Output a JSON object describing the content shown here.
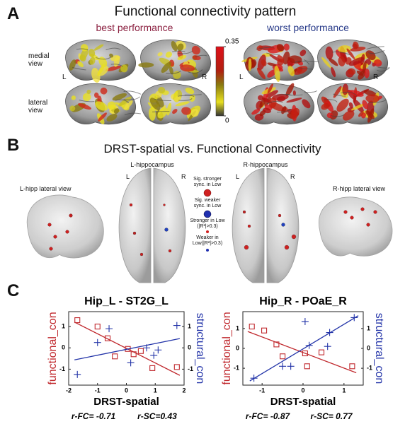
{
  "panel_a": {
    "label": "A",
    "title": "Functional connectivity pattern",
    "best": "best performance",
    "worst": "worst performance",
    "medial": "medial view",
    "lateral": "lateral view",
    "sides": [
      "L",
      "R",
      "L",
      "R"
    ],
    "colorbar": {
      "lim": [
        0,
        0.35
      ],
      "ticks": [
        0.35,
        0
      ]
    }
  },
  "panel_b": {
    "label": "B",
    "title": "DRST-spatial vs. Functional Connectivity",
    "left_lateral": "L-hipp lateral view",
    "left_top": "L-hippocampus",
    "right_top": "R-hippocampus",
    "right_lateral": "R-hipp lateral view",
    "sides": [
      "L",
      "R",
      "L",
      "R"
    ],
    "legend": [
      "Sig. stronger sync. in Low",
      "Sig. weaker sync. in Low",
      "Stronger in Low (|R²|>0.3)",
      "Weaker in Low(|R²|>0.3)"
    ]
  },
  "panel_c": {
    "label": "C"
  },
  "chart_data": [
    {
      "type": "scatter",
      "title": "Hip_L - ST2G_L",
      "xlabel": "DRST-spatial",
      "annotations": [
        "r-FC= -0.71",
        "r-SC=0.43"
      ],
      "xlim": [
        -2,
        2
      ],
      "xticks": [
        -2,
        -1,
        0,
        1,
        2
      ],
      "ylim": [
        -1.75,
        1.7
      ],
      "yticks": [
        -1,
        0,
        1
      ],
      "y2lim": [
        -1.75,
        1.7
      ],
      "y2ticks": [
        1,
        0,
        -1
      ],
      "series": [
        {
          "name": "functional_con",
          "color": "#c0282d",
          "marker": "square",
          "x": [
            -1.7,
            -1.0,
            -0.65,
            -0.4,
            0.05,
            0.25,
            0.5,
            0.9,
            1.75
          ],
          "values": [
            1.3,
            1.0,
            0.45,
            -0.4,
            -0.05,
            -0.3,
            -0.15,
            -0.95,
            -0.9
          ]
        },
        {
          "name": "structural_con",
          "color": "#2233a8",
          "marker": "plus",
          "axis": "y2",
          "x": [
            -1.7,
            -1.0,
            -0.6,
            0.15,
            0.7,
            0.95,
            1.1,
            1.75
          ],
          "values": [
            -1.25,
            0.25,
            0.9,
            -0.7,
            0.0,
            -0.35,
            -0.1,
            1.05
          ]
        }
      ]
    },
    {
      "type": "scatter",
      "title": "Hip_R - POaE_R",
      "xlabel": "DRST-spatial",
      "annotations": [
        "r-FC= -0.87",
        "r-SC= 0.77"
      ],
      "xlim": [
        -1.47,
        1.47
      ],
      "xticks": [
        -1,
        0,
        1
      ],
      "ylim": [
        -1.85,
        1.85
      ],
      "yticks": [
        -1,
        0,
        1
      ],
      "y2lim": [
        -1.85,
        1.85
      ],
      "y2ticks": [
        1,
        0,
        -1
      ],
      "series": [
        {
          "name": "functional_con",
          "color": "#c0282d",
          "marker": "square",
          "x": [
            -1.25,
            -0.95,
            -0.65,
            -0.5,
            0.05,
            0.1,
            0.45,
            1.2
          ],
          "values": [
            1.1,
            0.9,
            0.2,
            -0.4,
            -0.25,
            -0.9,
            -0.2,
            -0.9
          ]
        },
        {
          "name": "structural_con",
          "color": "#2233a8",
          "marker": "plus",
          "axis": "y2",
          "x": [
            -1.2,
            -0.5,
            -0.3,
            0.05,
            0.15,
            0.6,
            0.65,
            1.25
          ],
          "values": [
            -1.5,
            -0.9,
            -0.9,
            1.35,
            0.15,
            0.1,
            0.8,
            1.55
          ]
        }
      ]
    }
  ]
}
